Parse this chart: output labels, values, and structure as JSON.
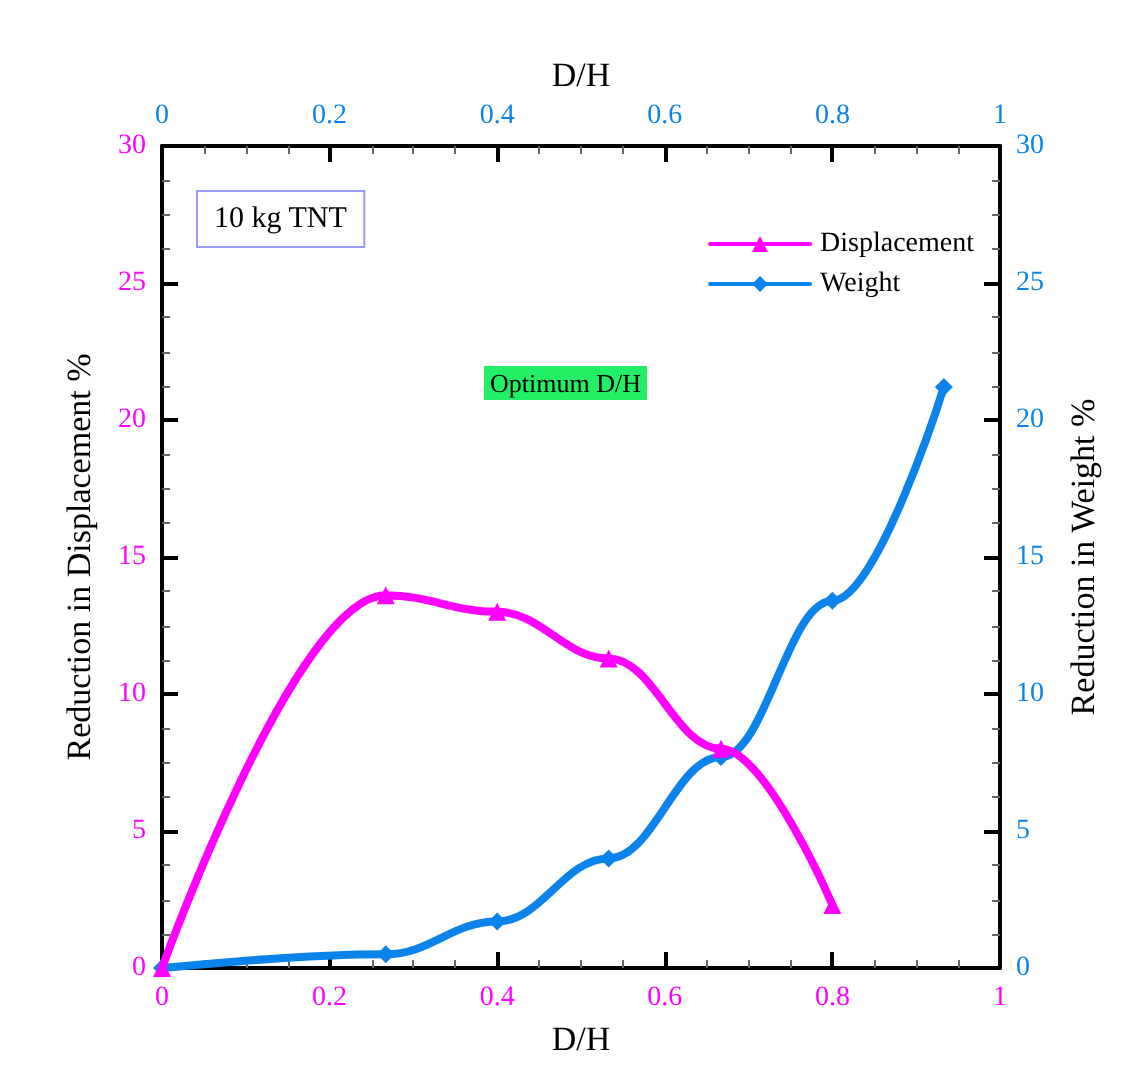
{
  "chart_data": {
    "type": "line",
    "xlabel": "D/H",
    "x2label": "D/H",
    "ylabel": "Reduction in Displacement %",
    "y2label": "Reduction in Weight %",
    "annotations": [
      "10 kg TNT",
      "Optimum D/H"
    ],
    "xlim": [
      0,
      1
    ],
    "xticks": [
      0,
      0.2,
      0.4,
      0.6,
      0.8,
      1
    ],
    "x2lim": [
      0,
      1
    ],
    "x2ticks": [
      0,
      0.2,
      0.4,
      0.6,
      0.8,
      1
    ],
    "ylim": [
      0,
      30
    ],
    "yticks": [
      0,
      5,
      10,
      15,
      20,
      25,
      30
    ],
    "y2lim": [
      0,
      30
    ],
    "y2ticks": [
      0,
      5,
      10,
      15,
      20,
      25,
      30
    ],
    "grid": false,
    "legend": "top right",
    "line_style": "solid",
    "series": [
      {
        "name": "Displacement",
        "color": "#ff00ff",
        "marker": "triangle",
        "x": [
          0,
          0.267,
          0.4,
          0.533,
          0.667,
          0.8
        ],
        "values": [
          0,
          13.6,
          13.0,
          11.3,
          8.0,
          2.3
        ]
      },
      {
        "name": "Weight",
        "color": "#0a84ea",
        "marker": "diamond",
        "axis": "y2",
        "x": [
          0,
          0.267,
          0.4,
          0.533,
          0.667,
          0.8,
          0.933
        ],
        "values": [
          0,
          0.5,
          1.7,
          4.0,
          7.7,
          13.4,
          21.2
        ]
      }
    ]
  }
}
